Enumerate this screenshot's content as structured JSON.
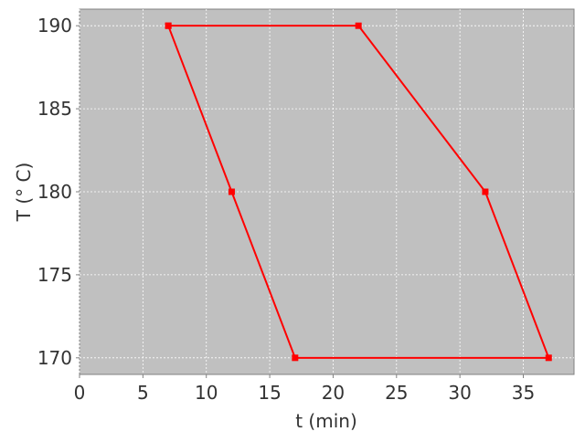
{
  "chart_data": {
    "type": "line",
    "title": "",
    "xlabel": "t (min)",
    "ylabel": "T (° C)",
    "xlim": [
      0,
      39
    ],
    "ylim": [
      169,
      191
    ],
    "xticks": [
      0,
      5,
      10,
      15,
      20,
      25,
      30,
      35
    ],
    "yticks": [
      170,
      175,
      180,
      185,
      190
    ],
    "grid": true,
    "background": "#c0c0c0",
    "series": [
      {
        "color": "#ff0000",
        "marker": "square",
        "x": [
          7,
          22,
          32,
          37,
          17,
          12,
          7
        ],
        "y": [
          190,
          190,
          180,
          170,
          170,
          180,
          190
        ]
      }
    ]
  }
}
